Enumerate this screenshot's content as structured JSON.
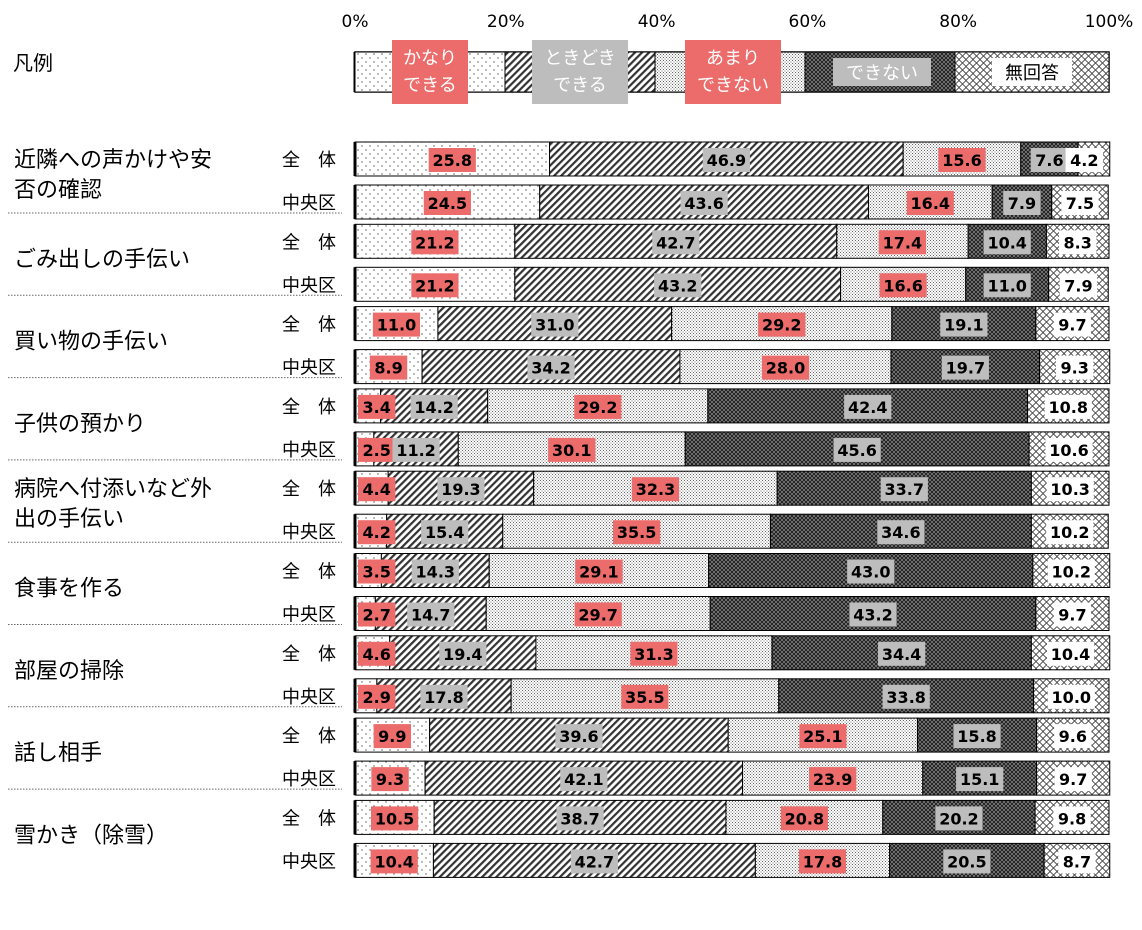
{
  "chart_data": {
    "type": "bar",
    "stacked": "100%",
    "orientation": "horizontal",
    "legend_title": "凡例",
    "x_ticks": [
      "0%",
      "20%",
      "40%",
      "60%",
      "80%",
      "100%"
    ],
    "xlim": [
      0,
      100
    ],
    "grid": false,
    "legend_position": "top",
    "series": [
      {
        "name": "かなりできる",
        "legend_label": [
          "かなり",
          "できる"
        ],
        "pattern": "sparse-dots",
        "label_color": "#ec6b6b"
      },
      {
        "name": "ときどきできる",
        "legend_label": [
          "ときどき",
          "できる"
        ],
        "pattern": "diagonal-hatch",
        "label_color": "#bdbdbd"
      },
      {
        "name": "あまりできない",
        "legend_label": [
          "あまり",
          "できない"
        ],
        "pattern": "dense-dots",
        "label_color": "#ec6b6b"
      },
      {
        "name": "できない",
        "legend_label": [
          "できない"
        ],
        "pattern": "dark-crosshatch",
        "label_color": "#bdbdbd"
      },
      {
        "name": "無回答",
        "legend_label": [
          "無回答"
        ],
        "pattern": "diamond-grid",
        "label_color": "#ffffff"
      }
    ],
    "groups": [
      {
        "label": [
          "近隣への声かけや安",
          "否の確認"
        ],
        "rows": [
          {
            "name": "全　体",
            "values": [
              25.8,
              46.9,
              15.6,
              7.6,
              4.2
            ]
          },
          {
            "name": "中央区",
            "values": [
              24.5,
              43.6,
              16.4,
              7.9,
              7.5
            ]
          }
        ]
      },
      {
        "label": [
          "ごみ出しの手伝い"
        ],
        "rows": [
          {
            "name": "全　体",
            "values": [
              21.2,
              42.7,
              17.4,
              10.4,
              8.3
            ]
          },
          {
            "name": "中央区",
            "values": [
              21.2,
              43.2,
              16.6,
              11.0,
              7.9
            ]
          }
        ]
      },
      {
        "label": [
          "買い物の手伝い"
        ],
        "rows": [
          {
            "name": "全　体",
            "values": [
              11.0,
              31.0,
              29.2,
              19.1,
              9.7
            ]
          },
          {
            "name": "中央区",
            "values": [
              8.9,
              34.2,
              28.0,
              19.7,
              9.3
            ]
          }
        ]
      },
      {
        "label": [
          "子供の預かり"
        ],
        "rows": [
          {
            "name": "全　体",
            "values": [
              3.4,
              14.2,
              29.2,
              42.4,
              10.8
            ]
          },
          {
            "name": "中央区",
            "values": [
              2.5,
              11.2,
              30.1,
              45.6,
              10.6
            ]
          }
        ]
      },
      {
        "label": [
          "病院へ付添いなど外",
          "出の手伝い"
        ],
        "rows": [
          {
            "name": "全　体",
            "values": [
              4.4,
              19.3,
              32.3,
              33.7,
              10.3
            ]
          },
          {
            "name": "中央区",
            "values": [
              4.2,
              15.4,
              35.5,
              34.6,
              10.2
            ]
          }
        ]
      },
      {
        "label": [
          "食事を作る"
        ],
        "rows": [
          {
            "name": "全　体",
            "values": [
              3.5,
              14.3,
              29.1,
              43.0,
              10.2
            ]
          },
          {
            "name": "中央区",
            "values": [
              2.7,
              14.7,
              29.7,
              43.2,
              9.7
            ]
          }
        ]
      },
      {
        "label": [
          "部屋の掃除"
        ],
        "rows": [
          {
            "name": "全　体",
            "values": [
              4.6,
              19.4,
              31.3,
              34.4,
              10.4
            ]
          },
          {
            "name": "中央区",
            "values": [
              2.9,
              17.8,
              35.5,
              33.8,
              10.0
            ]
          }
        ]
      },
      {
        "label": [
          "話し相手"
        ],
        "rows": [
          {
            "name": "全　体",
            "values": [
              9.9,
              39.6,
              25.1,
              15.8,
              9.6
            ]
          },
          {
            "name": "中央区",
            "values": [
              9.3,
              42.1,
              23.9,
              15.1,
              9.7
            ]
          }
        ]
      },
      {
        "label": [
          "雪かき（除雪）"
        ],
        "rows": [
          {
            "name": "全　体",
            "values": [
              10.5,
              38.7,
              20.8,
              20.2,
              9.8
            ]
          },
          {
            "name": "中央区",
            "values": [
              10.4,
              42.7,
              17.8,
              20.5,
              8.7
            ]
          }
        ]
      }
    ]
  }
}
